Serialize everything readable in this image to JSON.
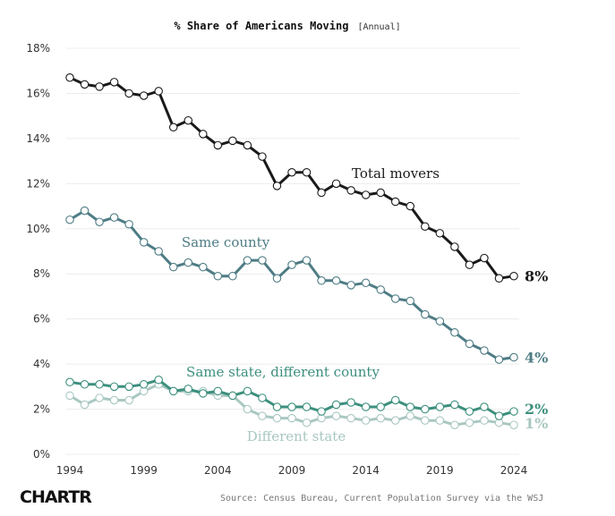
{
  "chart_data": {
    "type": "line",
    "title": "% Share of Americans Moving",
    "subtitle": "[Annual]",
    "xlabel": "",
    "ylabel": "",
    "xlim": [
      1994,
      2024
    ],
    "ylim": [
      0,
      18
    ],
    "x_ticks": [
      "1994",
      "1999",
      "2004",
      "2009",
      "2014",
      "2019",
      "2024"
    ],
    "y_ticks": [
      "0%",
      "2%",
      "4%",
      "6%",
      "8%",
      "10%",
      "12%",
      "14%",
      "16%",
      "18%"
    ],
    "grid": "horizontal",
    "x": [
      1994,
      1995,
      1996,
      1997,
      1998,
      1999,
      2000,
      2001,
      2002,
      2003,
      2004,
      2005,
      2006,
      2007,
      2008,
      2009,
      2010,
      2011,
      2012,
      2013,
      2014,
      2015,
      2016,
      2017,
      2018,
      2019,
      2020,
      2021,
      2022,
      2023,
      2024
    ],
    "series": [
      {
        "name": "Total movers",
        "end_label": "8%",
        "color": "#1a1a1a",
        "values": [
          16.7,
          16.4,
          16.3,
          16.5,
          16.0,
          15.9,
          16.1,
          14.5,
          14.8,
          14.2,
          13.7,
          13.9,
          13.7,
          13.2,
          11.9,
          12.5,
          12.5,
          11.6,
          12.0,
          11.7,
          11.5,
          11.6,
          11.2,
          11.0,
          10.1,
          9.8,
          9.2,
          8.4,
          8.7,
          7.8,
          7.9
        ]
      },
      {
        "name": "Same county",
        "end_label": "4%",
        "color": "#4e7c85",
        "values": [
          10.4,
          10.8,
          10.3,
          10.5,
          10.2,
          9.4,
          9.0,
          8.3,
          8.5,
          8.3,
          7.9,
          7.9,
          8.6,
          8.6,
          7.8,
          8.4,
          8.6,
          7.7,
          7.7,
          7.5,
          7.6,
          7.3,
          6.9,
          6.8,
          6.2,
          5.9,
          5.4,
          4.9,
          4.6,
          4.2,
          4.3
        ]
      },
      {
        "name": "Same state, different county",
        "end_label": "2%",
        "color": "#3c8f7d",
        "values": [
          3.2,
          3.1,
          3.1,
          3.0,
          3.0,
          3.1,
          3.3,
          2.8,
          2.9,
          2.7,
          2.8,
          2.6,
          2.8,
          2.5,
          2.1,
          2.1,
          2.1,
          1.9,
          2.2,
          2.3,
          2.1,
          2.1,
          2.4,
          2.1,
          2.0,
          2.1,
          2.2,
          1.9,
          2.1,
          1.7,
          1.9
        ]
      },
      {
        "name": "Different state",
        "end_label": "1%",
        "color": "#a9c7c1",
        "values": [
          2.6,
          2.2,
          2.5,
          2.4,
          2.4,
          2.8,
          3.1,
          2.8,
          2.8,
          2.8,
          2.6,
          2.6,
          2.0,
          1.7,
          1.6,
          1.6,
          1.4,
          1.6,
          1.7,
          1.6,
          1.5,
          1.6,
          1.5,
          1.7,
          1.5,
          1.5,
          1.3,
          1.4,
          1.5,
          1.4,
          1.3
        ]
      }
    ]
  },
  "footer": {
    "source": "Source: Census Bureau, Current Population Survey via the WSJ",
    "logo": "CHARTR"
  }
}
